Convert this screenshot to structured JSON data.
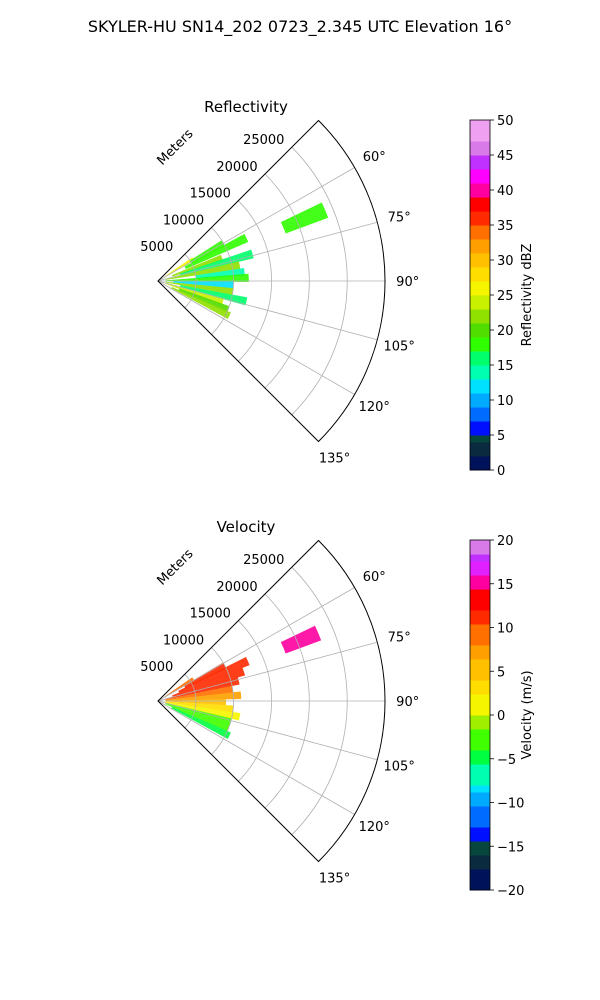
{
  "figure": {
    "suptitle": "SKYLER-HU  SN14_202  0723_2.345 UTC Elevation 16°"
  },
  "chart_data": [
    {
      "type": "heatmap",
      "projection": "polar-sector",
      "title": "Reflectivity",
      "radial_label": "Meters",
      "theta_range_deg": [
        45,
        135
      ],
      "theta_ticks": [
        60,
        75,
        90,
        105,
        120,
        135
      ],
      "theta_tick_labels": [
        "60°",
        "75°",
        "90°",
        "105°",
        "120°",
        "135°"
      ],
      "r_range": [
        0,
        30000
      ],
      "r_ticks": [
        5000,
        10000,
        15000,
        20000,
        25000
      ],
      "r_tick_labels": [
        "5000",
        "10000",
        "15000",
        "20000",
        "25000"
      ],
      "grid": true,
      "colorbar": {
        "label": "Reflectivity dBZ",
        "range": [
          0,
          50
        ],
        "ticks": [
          0,
          5,
          10,
          15,
          20,
          25,
          30,
          35,
          40,
          45,
          50
        ],
        "tick_labels": [
          "0",
          "5",
          "10",
          "15",
          "20",
          "25",
          "30",
          "35",
          "40",
          "45",
          "50"
        ]
      },
      "echoes": [
        {
          "az": 58,
          "r_min": 1000,
          "r_max": 5500,
          "value": 25
        },
        {
          "az": 60,
          "r_min": 5000,
          "r_max": 10000,
          "value": 18
        },
        {
          "az": 64,
          "r_min": 4000,
          "r_max": 13000,
          "value": 17
        },
        {
          "az": 67,
          "r_min": 18000,
          "r_max": 24000,
          "value": 18
        },
        {
          "az": 70,
          "r_min": 2000,
          "r_max": 9000,
          "value": 22
        },
        {
          "az": 74,
          "r_min": 3000,
          "r_max": 13000,
          "value": 15
        },
        {
          "az": 79,
          "r_min": 1000,
          "r_max": 11000,
          "value": 21
        },
        {
          "az": 84,
          "r_min": 5000,
          "r_max": 11500,
          "value": 13
        },
        {
          "az": 88,
          "r_min": 1000,
          "r_max": 12000,
          "value": 18
        },
        {
          "az": 93,
          "r_min": 2000,
          "r_max": 10000,
          "value": 12
        },
        {
          "az": 98,
          "r_min": 1000,
          "r_max": 10000,
          "value": 22
        },
        {
          "az": 103,
          "r_min": 3000,
          "r_max": 12000,
          "value": 16
        },
        {
          "az": 108,
          "r_min": 1000,
          "r_max": 9000,
          "value": 24
        },
        {
          "az": 112,
          "r_min": 3000,
          "r_max": 10000,
          "value": 20
        },
        {
          "az": 116,
          "r_min": 2000,
          "r_max": 10500,
          "value": 22
        }
      ]
    },
    {
      "type": "heatmap",
      "projection": "polar-sector",
      "title": "Velocity",
      "radial_label": "Meters",
      "theta_range_deg": [
        45,
        135
      ],
      "theta_ticks": [
        60,
        75,
        90,
        105,
        120,
        135
      ],
      "theta_tick_labels": [
        "60°",
        "75°",
        "90°",
        "105°",
        "120°",
        "135°"
      ],
      "r_range": [
        0,
        30000
      ],
      "r_ticks": [
        5000,
        10000,
        15000,
        20000,
        25000
      ],
      "r_tick_labels": [
        "5000",
        "10000",
        "15000",
        "20000",
        "25000"
      ],
      "grid": true,
      "colorbar": {
        "label": "Velocity (m/s)",
        "range": [
          -20,
          20
        ],
        "ticks": [
          -20,
          -15,
          -10,
          -5,
          0,
          5,
          10,
          15,
          20
        ],
        "tick_labels": [
          "−20",
          "−15",
          "−10",
          "−5",
          "0",
          "5",
          "10",
          "15",
          "20"
        ]
      },
      "echoes": [
        {
          "az": 58,
          "r_min": 1000,
          "r_max": 5500,
          "value": 8
        },
        {
          "az": 62,
          "r_min": 4000,
          "r_max": 10000,
          "value": 11
        },
        {
          "az": 66,
          "r_min": 3000,
          "r_max": 13000,
          "value": 10
        },
        {
          "az": 67,
          "r_min": 18000,
          "r_max": 23000,
          "value": 15
        },
        {
          "az": 71,
          "r_min": 2000,
          "r_max": 12000,
          "value": 11
        },
        {
          "az": 76,
          "r_min": 1000,
          "r_max": 11000,
          "value": 10
        },
        {
          "az": 81,
          "r_min": 1000,
          "r_max": 10000,
          "value": 9
        },
        {
          "az": 86,
          "r_min": 1000,
          "r_max": 11000,
          "value": 7
        },
        {
          "az": 91,
          "r_min": 1000,
          "r_max": 9000,
          "value": 4
        },
        {
          "az": 96,
          "r_min": 1000,
          "r_max": 10000,
          "value": 2
        },
        {
          "az": 101,
          "r_min": 1000,
          "r_max": 11000,
          "value": 0
        },
        {
          "az": 106,
          "r_min": 1000,
          "r_max": 10000,
          "value": -3
        },
        {
          "az": 111,
          "r_min": 1000,
          "r_max": 10000,
          "value": -4
        },
        {
          "az": 116,
          "r_min": 2000,
          "r_max": 10500,
          "value": -5
        }
      ]
    }
  ]
}
